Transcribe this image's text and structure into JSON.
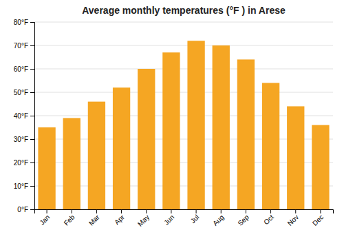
{
  "chart_data": {
    "type": "bar",
    "title": "Average monthly temperatures (°F ) in Arese",
    "categories": [
      "Jan",
      "Feb",
      "Mar",
      "Apr",
      "May",
      "Jun",
      "Jul",
      "Aug",
      "Sep",
      "Oct",
      "Nov",
      "Dec"
    ],
    "values": [
      35,
      39,
      46,
      52,
      60,
      67,
      72,
      70,
      64,
      54,
      44,
      36
    ],
    "color": "#F5A623",
    "ylim": [
      0,
      80
    ],
    "yticks": [
      {
        "value": 0,
        "label": "0°F"
      },
      {
        "value": 10,
        "label": "10°F"
      },
      {
        "value": 20,
        "label": "20°F"
      },
      {
        "value": 30,
        "label": "30°F"
      },
      {
        "value": 40,
        "label": "40°F"
      },
      {
        "value": 50,
        "label": "50°F"
      },
      {
        "value": 60,
        "label": "60°F"
      },
      {
        "value": 70,
        "label": "70°F"
      },
      {
        "value": 80,
        "label": "80°F"
      }
    ],
    "grid": true
  }
}
